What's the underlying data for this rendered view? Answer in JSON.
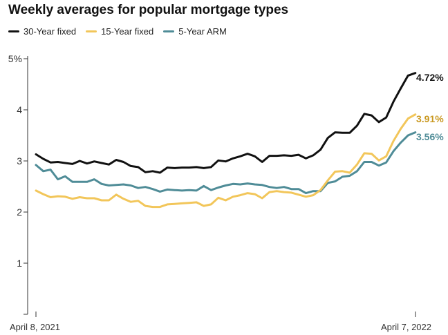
{
  "title": "Weekly averages for popular mortgage types",
  "legend": [
    {
      "label": "30-Year fixed",
      "color": "#111111"
    },
    {
      "label": "15-Year fixed",
      "color": "#f2c65a"
    },
    {
      "label": "5-Year ARM",
      "color": "#4f8c97"
    }
  ],
  "chart_data": {
    "type": "line",
    "title": "Weekly averages for popular mortgage types",
    "xlabel": "",
    "ylabel": "",
    "ylim": [
      0,
      5
    ],
    "y_ticks": [
      "",
      "1",
      "2",
      "3",
      "4",
      "5%"
    ],
    "x_tick_labels": [
      "April 8, 2021",
      "April 7, 2022"
    ],
    "grid": false,
    "legend_position": "top-left",
    "x": [
      "2021-04-08",
      "2021-04-15",
      "2021-04-22",
      "2021-04-29",
      "2021-05-06",
      "2021-05-13",
      "2021-05-20",
      "2021-05-27",
      "2021-06-03",
      "2021-06-10",
      "2021-06-17",
      "2021-06-24",
      "2021-07-01",
      "2021-07-08",
      "2021-07-15",
      "2021-07-22",
      "2021-07-29",
      "2021-08-05",
      "2021-08-12",
      "2021-08-19",
      "2021-08-26",
      "2021-09-02",
      "2021-09-09",
      "2021-09-16",
      "2021-09-23",
      "2021-09-30",
      "2021-10-07",
      "2021-10-14",
      "2021-10-21",
      "2021-10-28",
      "2021-11-04",
      "2021-11-11",
      "2021-11-18",
      "2021-11-25",
      "2021-12-02",
      "2021-12-09",
      "2021-12-16",
      "2021-12-23",
      "2021-12-30",
      "2022-01-06",
      "2022-01-13",
      "2022-01-20",
      "2022-01-27",
      "2022-02-03",
      "2022-02-10",
      "2022-02-17",
      "2022-02-24",
      "2022-03-03",
      "2022-03-10",
      "2022-03-17",
      "2022-03-24",
      "2022-03-31",
      "2022-04-07"
    ],
    "series": [
      {
        "name": "30-Year fixed",
        "color": "#111111",
        "end_label": "4.72%",
        "values": [
          3.13,
          3.04,
          2.97,
          2.98,
          2.96,
          2.94,
          3.0,
          2.95,
          2.99,
          2.96,
          2.93,
          3.02,
          2.98,
          2.9,
          2.88,
          2.78,
          2.8,
          2.77,
          2.87,
          2.86,
          2.87,
          2.87,
          2.88,
          2.86,
          2.88,
          3.01,
          2.99,
          3.05,
          3.09,
          3.14,
          3.09,
          2.98,
          3.1,
          3.1,
          3.11,
          3.1,
          3.12,
          3.05,
          3.11,
          3.22,
          3.45,
          3.56,
          3.55,
          3.55,
          3.69,
          3.92,
          3.89,
          3.76,
          3.85,
          4.16,
          4.42,
          4.67,
          4.72
        ]
      },
      {
        "name": "15-Year fixed",
        "color": "#f2c65a",
        "end_label": "3.91%",
        "values": [
          2.42,
          2.35,
          2.29,
          2.31,
          2.3,
          2.26,
          2.29,
          2.27,
          2.27,
          2.23,
          2.23,
          2.34,
          2.26,
          2.2,
          2.22,
          2.12,
          2.1,
          2.1,
          2.15,
          2.16,
          2.17,
          2.18,
          2.19,
          2.12,
          2.15,
          2.28,
          2.23,
          2.3,
          2.33,
          2.37,
          2.35,
          2.27,
          2.39,
          2.41,
          2.39,
          2.38,
          2.34,
          2.3,
          2.33,
          2.43,
          2.62,
          2.79,
          2.8,
          2.77,
          2.93,
          3.15,
          3.14,
          3.01,
          3.09,
          3.39,
          3.63,
          3.83,
          3.91
        ]
      },
      {
        "name": "5-Year ARM",
        "color": "#4f8c97",
        "end_label": "3.56%",
        "values": [
          2.92,
          2.8,
          2.83,
          2.64,
          2.7,
          2.59,
          2.59,
          2.59,
          2.64,
          2.55,
          2.52,
          2.53,
          2.54,
          2.52,
          2.47,
          2.49,
          2.45,
          2.4,
          2.44,
          2.43,
          2.42,
          2.43,
          2.42,
          2.51,
          2.43,
          2.48,
          2.52,
          2.55,
          2.54,
          2.56,
          2.54,
          2.53,
          2.49,
          2.47,
          2.49,
          2.45,
          2.45,
          2.37,
          2.41,
          2.41,
          2.57,
          2.6,
          2.69,
          2.71,
          2.8,
          2.98,
          2.98,
          2.91,
          2.97,
          3.19,
          3.36,
          3.5,
          3.56
        ]
      }
    ]
  }
}
